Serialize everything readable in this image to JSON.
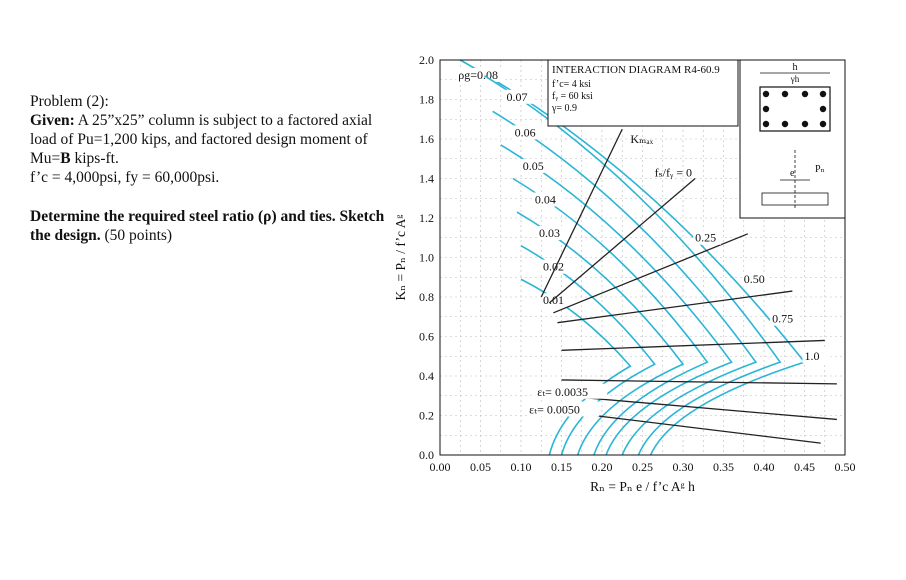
{
  "problem": {
    "heading": "Problem (2):",
    "given_label": "Given:",
    "given_text_1": " A 25”x25” column is subject to a factored axial load of  Pu=1,200 kips, and factored design moment of Mu=",
    "given_b": "B",
    "given_text_2": " kips-ft.",
    "materials": "f’c = 4,000psi, fy = 60,000psi.",
    "task_bold": "Determine the required steel ratio (ρ) and ties. Sketch the design.",
    "task_points": " (50 points)"
  },
  "chart_data": {
    "type": "line",
    "title": "INTERACTION DIAGRAM R4-60.9",
    "params": [
      "f’c= 4 ksi",
      "fᵧ = 60 ksi",
      "γ= 0.9"
    ],
    "xlabel": "Rₙ = Pₙ e / f’c Aᵍ h",
    "ylabel": "Kₙ = Pₙ / f’c Aᵍ",
    "xlim": [
      0,
      0.5
    ],
    "ylim": [
      0,
      2.0
    ],
    "xticks": [
      "0.00",
      "0.05",
      "0.10",
      "0.15",
      "0.20",
      "0.25",
      "0.30",
      "0.35",
      "0.40",
      "0.45",
      "0.50"
    ],
    "yticks": [
      "0.0",
      "0.2",
      "0.4",
      "0.6",
      "0.8",
      "1.0",
      "1.2",
      "1.4",
      "1.6",
      "1.8",
      "2.0"
    ],
    "curve_color": "#2bb5d6",
    "series": [
      {
        "name": "0.08",
        "knee": [
          0.45,
          0.47
        ],
        "end": [
          0.26,
          0.0
        ]
      },
      {
        "name": "0.07",
        "knee": [
          0.42,
          0.47
        ],
        "end": [
          0.245,
          0.0
        ]
      },
      {
        "name": "0.06",
        "knee": [
          0.39,
          0.47
        ],
        "end": [
          0.225,
          0.0
        ]
      },
      {
        "name": "0.05",
        "knee": [
          0.36,
          0.47
        ],
        "end": [
          0.205,
          0.0
        ]
      },
      {
        "name": "0.04",
        "knee": [
          0.33,
          0.47
        ],
        "end": [
          0.19,
          0.0
        ]
      },
      {
        "name": "0.03",
        "knee": [
          0.3,
          0.46
        ],
        "end": [
          0.17,
          0.0
        ]
      },
      {
        "name": "0.02",
        "knee": [
          0.265,
          0.46
        ],
        "end": [
          0.15,
          0.0
        ]
      },
      {
        "name": "0.01",
        "knee": [
          0.235,
          0.45
        ],
        "end": [
          0.135,
          0.0
        ]
      }
    ],
    "series_tops": [
      {
        "name": "0.08",
        "x": 0.025,
        "y": 2.0
      },
      {
        "name": "0.07",
        "x": 0.055,
        "y": 1.92
      },
      {
        "name": "0.06",
        "x": 0.065,
        "y": 1.74
      },
      {
        "name": "0.05",
        "x": 0.075,
        "y": 1.57
      },
      {
        "name": "0.04",
        "x": 0.09,
        "y": 1.4
      },
      {
        "name": "0.03",
        "x": 0.095,
        "y": 1.23
      },
      {
        "name": "0.02",
        "x": 0.1,
        "y": 1.06
      },
      {
        "name": "0.01",
        "x": 0.1,
        "y": 0.89
      }
    ],
    "rho_label_prefix": "ρg=",
    "kmax_label": "Kₘₐₓ",
    "fs_label": "fₛ/fᵧ = 0",
    "eccentricity_labels": [
      "0.25",
      "0.50",
      "0.75",
      "1.0"
    ],
    "strain_labels": [
      "εₜ= 0.0035",
      "εₜ= 0.0050"
    ],
    "section_labels": {
      "h": "h",
      "gamma_h": "γh",
      "e": "e",
      "Pn": "Pₙ"
    }
  }
}
